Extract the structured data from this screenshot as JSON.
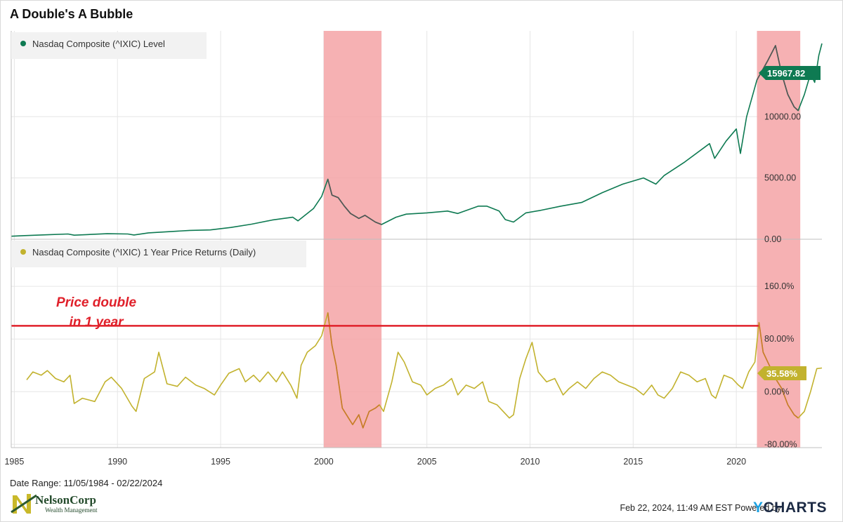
{
  "title": "A Double's A Bubble",
  "date_range": "Date Range: 11/05/1984 - 02/22/2024",
  "timestamp": "Feb 22, 2024, 11:49 AM EST",
  "powered_by": "Powered by",
  "ycharts": {
    "y": "Y",
    "rest": "CHARTS"
  },
  "logo": {
    "name": "NelsonCorp",
    "sub": "Wealth Management"
  },
  "annotation": {
    "line1": "Price double",
    "line2": "in 1 year"
  },
  "colors": {
    "level": "#0e7a52",
    "returns": "#c2b22e",
    "shade": "#f4a3a6",
    "threshold": "#e0202a",
    "dark_overlay": "#555555",
    "returns_overlay": "#c87a2a"
  },
  "chart_data": [
    {
      "type": "line",
      "series": [
        {
          "name": "Nasdaq Composite (^IXIC) Level",
          "x": [
            1984.85,
            1985.5,
            1986.5,
            1987.6,
            1987.9,
            1988.5,
            1989.5,
            1990.5,
            1990.8,
            1991.5,
            1992.5,
            1993.5,
            1994.5,
            1995.5,
            1996.5,
            1997.5,
            1998.5,
            1998.75,
            1999.5,
            1999.9,
            2000.2,
            2000.4,
            2000.7,
            2001.0,
            2001.3,
            2001.7,
            2002.0,
            2002.5,
            2002.8,
            2003.5,
            2004.0,
            2005.0,
            2006.0,
            2006.5,
            2007.5,
            2007.9,
            2008.5,
            2008.8,
            2009.2,
            2009.8,
            2010.5,
            2011.5,
            2012.5,
            2013.5,
            2014.5,
            2015.5,
            2016.1,
            2016.5,
            2017.5,
            2018.7,
            2018.95,
            2019.5,
            2020.0,
            2020.2,
            2020.5,
            2021.0,
            2021.5,
            2021.9,
            2022.2,
            2022.5,
            2022.8,
            2023.0,
            2023.3,
            2023.6,
            2023.8,
            2024.0,
            2024.15
          ],
          "values": [
            245,
            300,
            360,
            430,
            330,
            380,
            450,
            430,
            350,
            520,
            620,
            720,
            760,
            960,
            1230,
            1570,
            1800,
            1500,
            2500,
            3500,
            4900,
            3600,
            3400,
            2700,
            2100,
            1700,
            1950,
            1400,
            1200,
            1800,
            2050,
            2150,
            2300,
            2100,
            2700,
            2700,
            2300,
            1600,
            1400,
            2150,
            2350,
            2700,
            3000,
            3800,
            4500,
            5000,
            4500,
            5200,
            6300,
            7800,
            6600,
            8000,
            9000,
            7000,
            10000,
            13000,
            14500,
            15800,
            13500,
            11800,
            10800,
            10500,
            11800,
            13500,
            12800,
            15000,
            15968
          ],
          "last_value_label": "15967.82"
        }
      ],
      "ylim": [
        0,
        17000
      ],
      "y_ticks": [
        "0.00",
        "5000.00",
        "10000.00"
      ],
      "y_tick_values": [
        0,
        5000,
        10000
      ]
    },
    {
      "type": "line",
      "series": [
        {
          "name": "Nasdaq Composite (^IXIC) 1 Year Price Returns (Daily)",
          "x": [
            1985.6,
            1985.9,
            1986.3,
            1986.6,
            1987.0,
            1987.4,
            1987.7,
            1987.9,
            1988.3,
            1988.9,
            1989.4,
            1989.7,
            1990.2,
            1990.7,
            1990.9,
            1991.3,
            1991.8,
            1992.0,
            1992.4,
            1992.9,
            1993.3,
            1993.8,
            1994.2,
            1994.7,
            1995.0,
            1995.4,
            1995.9,
            1996.2,
            1996.6,
            1996.9,
            1997.3,
            1997.7,
            1998.0,
            1998.4,
            1998.7,
            1998.9,
            1999.2,
            1999.6,
            1999.9,
            2000.2,
            2000.4,
            2000.6,
            2000.9,
            2001.2,
            2001.4,
            2001.7,
            2001.9,
            2002.2,
            2002.5,
            2002.7,
            2002.9,
            2003.3,
            2003.6,
            2003.9,
            2004.3,
            2004.7,
            2005.0,
            2005.4,
            2005.8,
            2006.2,
            2006.5,
            2006.9,
            2007.3,
            2007.7,
            2008.0,
            2008.4,
            2008.7,
            2009.0,
            2009.2,
            2009.5,
            2009.8,
            2010.1,
            2010.4,
            2010.8,
            2011.2,
            2011.6,
            2011.9,
            2012.3,
            2012.7,
            2013.1,
            2013.5,
            2013.9,
            2014.3,
            2014.7,
            2015.1,
            2015.5,
            2015.9,
            2016.2,
            2016.5,
            2016.9,
            2017.3,
            2017.7,
            2018.1,
            2018.5,
            2018.8,
            2019.0,
            2019.4,
            2019.8,
            2020.1,
            2020.3,
            2020.6,
            2020.9,
            2021.1,
            2021.3,
            2021.6,
            2021.9,
            2022.2,
            2022.5,
            2022.8,
            2023.0,
            2023.3,
            2023.6,
            2023.9,
            2024.15
          ],
          "values": [
            18,
            30,
            25,
            32,
            20,
            15,
            25,
            -18,
            -10,
            -15,
            15,
            22,
            5,
            -22,
            -30,
            20,
            30,
            60,
            12,
            8,
            22,
            10,
            5,
            -5,
            10,
            28,
            35,
            15,
            25,
            15,
            30,
            15,
            30,
            10,
            -10,
            40,
            60,
            70,
            85,
            120,
            70,
            40,
            -25,
            -40,
            -50,
            -35,
            -55,
            -30,
            -25,
            -20,
            -30,
            15,
            60,
            45,
            15,
            10,
            -5,
            5,
            10,
            20,
            -5,
            10,
            5,
            15,
            -15,
            -20,
            -30,
            -40,
            -35,
            20,
            50,
            75,
            30,
            15,
            20,
            -5,
            5,
            15,
            5,
            20,
            30,
            25,
            15,
            10,
            5,
            -5,
            10,
            -5,
            -10,
            5,
            30,
            25,
            15,
            20,
            -5,
            -10,
            25,
            20,
            10,
            5,
            30,
            45,
            105,
            60,
            40,
            20,
            5,
            -20,
            -35,
            -40,
            -30,
            0,
            35,
            36
          ],
          "last_value_label": "35.58%"
        }
      ],
      "ylim": [
        -85,
        190
      ],
      "y_ticks": [
        "-80.00%",
        "0.00%",
        "80.00%",
        "160.0%"
      ],
      "y_tick_values": [
        -80,
        0,
        80,
        160
      ],
      "threshold": 100
    }
  ],
  "x_axis": {
    "range": [
      1984.85,
      2024.15
    ],
    "ticks": [
      "1985",
      "1990",
      "1995",
      "2000",
      "2005",
      "2010",
      "2015",
      "2020"
    ],
    "tick_values": [
      1985,
      1990,
      1995,
      2000,
      2005,
      2010,
      2015,
      2020
    ]
  },
  "recession_shading": [
    [
      2000.0,
      2002.8
    ],
    [
      2021.0,
      2023.1
    ]
  ]
}
